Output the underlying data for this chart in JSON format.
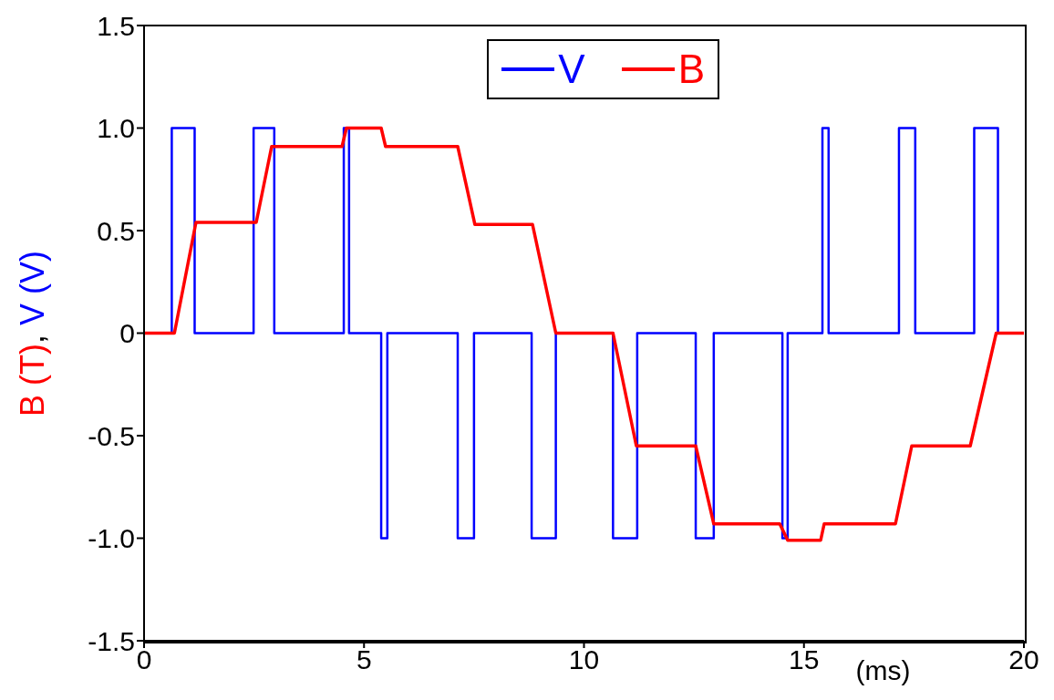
{
  "chart_data": {
    "type": "line",
    "xlabel": "(ms)",
    "ylabel": "B (T), V (V)",
    "xlim": [
      0,
      20
    ],
    "xticks": [
      0,
      5,
      10,
      15,
      20
    ],
    "ylim": [
      -1.5,
      1.5
    ],
    "yticks": [
      -1.5,
      {
        "value": -1,
        "label": "-1.0"
      },
      -0.5,
      0,
      0.5,
      {
        "value": 1,
        "label": "1.0"
      },
      1.5
    ],
    "legend": "top",
    "marker": "none",
    "line_style": "solid",
    "series": [
      {
        "name": "V",
        "color": "#0000ff",
        "type": "step",
        "x": [
          0,
          0.63,
          1.15,
          2.49,
          2.96,
          4.54,
          4.66,
          5.39,
          5.53,
          7.13,
          7.5,
          8.81,
          9.36,
          10.66,
          11.21,
          12.54,
          12.95,
          14.51,
          14.63,
          15.42,
          15.56,
          17.16,
          17.53,
          18.87,
          19.41,
          20
        ],
        "values": [
          0,
          1,
          0,
          1,
          0,
          1,
          0,
          -1,
          0,
          -1,
          0,
          -1,
          0,
          -1,
          0,
          -1,
          0,
          -1,
          0,
          1,
          0,
          1,
          0,
          1,
          0,
          0
        ]
      },
      {
        "name": "B",
        "color": "#ff0000",
        "x": [
          0,
          0.69,
          1.18,
          2.55,
          2.9,
          4.5,
          4.6,
          5.39,
          5.49,
          7.13,
          7.52,
          8.83,
          9.36,
          10.66,
          11.19,
          12.54,
          12.95,
          14.45,
          14.63,
          15.38,
          15.46,
          17.08,
          17.45,
          18.78,
          19.37,
          20
        ],
        "values": [
          0,
          0,
          0.54,
          0.54,
          0.91,
          0.91,
          1,
          1,
          0.91,
          0.91,
          0.53,
          0.53,
          0,
          0,
          -0.55,
          -0.55,
          -0.93,
          -0.93,
          -1.01,
          -1.01,
          -0.93,
          -0.93,
          -0.55,
          -0.55,
          0,
          0
        ]
      }
    ]
  }
}
